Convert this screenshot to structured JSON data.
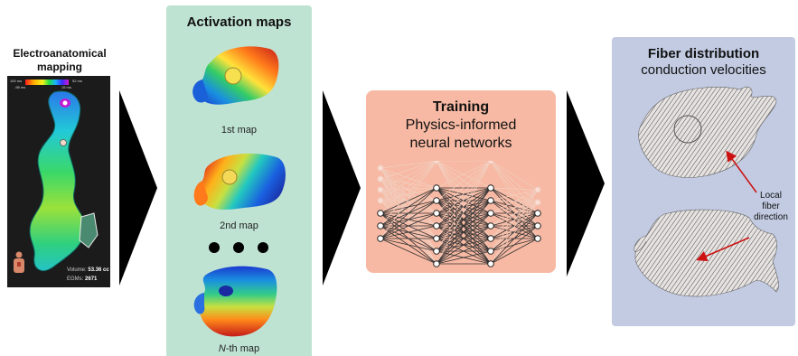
{
  "ea_panel": {
    "title_line1": "Electroanatomical",
    "title_line2": "mapping",
    "scale_left_top": "100 ms",
    "scale_left_bottom": "-98 ms",
    "scale_right_top": "52 ms",
    "scale_right_bottom": "15 ms",
    "volume_label": "Volume:",
    "volume_value": "53.36 cc",
    "egms_label": "EGMs:",
    "egms_value": "2671"
  },
  "activation_panel": {
    "title": "Activation maps",
    "map1_caption": "1st map",
    "map2_caption": "2nd map",
    "mapN_italic": "N",
    "mapN_rest": "-th map",
    "background_color": "#bfe3d3"
  },
  "training_panel": {
    "title": "Training",
    "subtitle_line1": "Physics-informed",
    "subtitle_line2": "neural networks",
    "background_color": "#f7b9a3"
  },
  "fiber_panel": {
    "title": "Fiber distribution",
    "subtitle": "conduction velocities",
    "annotation_line1": "Local",
    "annotation_line2": "fiber",
    "annotation_line3": "direction",
    "background_color": "#c2cbe2"
  },
  "colors": {
    "arrow": "#000000",
    "annotation_arrow": "#cc1111"
  }
}
